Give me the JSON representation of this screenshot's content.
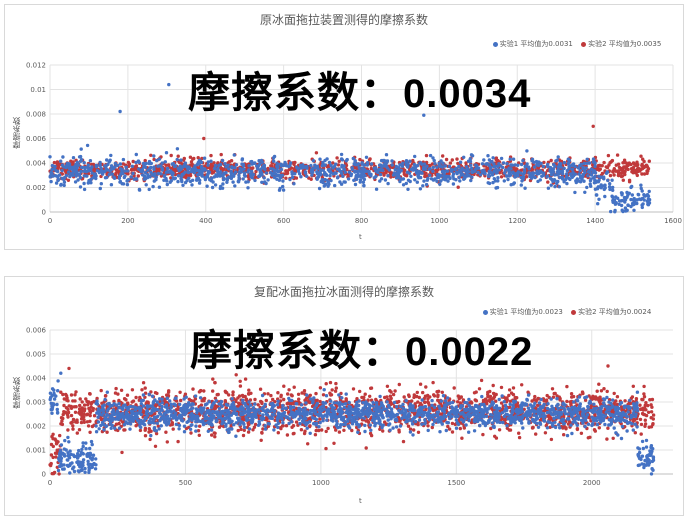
{
  "colors": {
    "series1": "#4472c4",
    "series2": "#c0393b",
    "grid": "#e3e3e3",
    "axis": "#bfbfbf",
    "text": "#595959"
  },
  "charts": [
    {
      "title": "原冰面拖拉装置测得的摩擦系数",
      "overlay_label": "摩擦系数：",
      "overlay_value": "0.0034",
      "ylabel": "摩擦系数",
      "xlabel": "t",
      "xticks": [
        "0",
        "200",
        "400",
        "600",
        "800",
        "1000",
        "1200",
        "1400",
        "1600"
      ],
      "yticks": [
        "0",
        "0.002",
        "0.004",
        "0.006",
        "0.008",
        "0.01",
        "0.012"
      ],
      "legend": [
        {
          "name": "实验1 平均值为0.0031"
        },
        {
          "name": "实验2 平均值为0.0035"
        }
      ]
    },
    {
      "title": "复配冰面拖拉冰面测得的摩擦系数",
      "overlay_label": "摩擦系数：",
      "overlay_value": "0.0022",
      "ylabel": "摩擦系数",
      "xlabel": "t",
      "xticks": [
        "0",
        "500",
        "1000",
        "1500",
        "2000"
      ],
      "yticks": [
        "0",
        "0.001",
        "0.002",
        "0.003",
        "0.004",
        "0.005",
        "0.006"
      ],
      "legend": [
        {
          "name": "实验1 平均值为0.0023"
        },
        {
          "name": "实验2 平均值为0.0024"
        }
      ]
    }
  ],
  "chart_data": [
    {
      "type": "scatter",
      "title": "原冰面拖拉装置测得的摩擦系数",
      "xlabel": "t",
      "ylabel": "摩擦系数",
      "xlim": [
        0,
        1600
      ],
      "ylim": [
        0,
        0.012
      ],
      "grid": true,
      "legend_position": "top-right",
      "series": [
        {
          "name": "实验1 平均值为0.0031",
          "x_range": [
            0,
            1540
          ],
          "typical_y": 0.0032,
          "y_spread": 0.0012,
          "segments": [
            {
              "x": [
                0,
                1400
              ],
              "mean": 0.0033
            },
            {
              "x": [
                1400,
                1440
              ],
              "mean": 0.0022
            },
            {
              "x": [
                1440,
                1540
              ],
              "mean": 0.001
            }
          ],
          "outliers": [
            {
              "x": 305,
              "y": 0.0104
            },
            {
              "x": 180,
              "y": 0.0082
            },
            {
              "x": 960,
              "y": 0.0079
            }
          ]
        },
        {
          "name": "实验2 平均值为0.0035",
          "x_range": [
            0,
            1540
          ],
          "typical_y": 0.0035,
          "y_spread": 0.0008,
          "segments": [
            {
              "x": [
                0,
                1540
              ],
              "mean": 0.0035
            }
          ],
          "outliers": [
            {
              "x": 1395,
              "y": 0.007
            },
            {
              "x": 395,
              "y": 0.006
            }
          ]
        }
      ]
    },
    {
      "type": "scatter",
      "title": "复配冰面拖拉冰面测得的摩擦系数",
      "xlabel": "t",
      "ylabel": "摩擦系数",
      "xlim": [
        0,
        2300
      ],
      "ylim": [
        0,
        0.006
      ],
      "grid": true,
      "legend_position": "top-right",
      "series": [
        {
          "name": "实验1 平均值为0.0023",
          "x_range": [
            0,
            2230
          ],
          "typical_y": 0.0024,
          "y_spread": 0.0006,
          "segments": [
            {
              "x": [
                0,
                30
              ],
              "mean": 0.0032
            },
            {
              "x": [
                30,
                170
              ],
              "mean": 0.0006
            },
            {
              "x": [
                170,
                2170
              ],
              "mean": 0.0025
            },
            {
              "x": [
                2170,
                2230
              ],
              "mean": 0.0006
            }
          ],
          "outliers": [
            {
              "x": 40,
              "y": 0.0042
            }
          ]
        },
        {
          "name": "实验2 平均值为0.0024",
          "x_range": [
            0,
            2230
          ],
          "typical_y": 0.0025,
          "y_spread": 0.0009,
          "segments": [
            {
              "x": [
                0,
                40
              ],
              "mean": 0.0008
            },
            {
              "x": [
                40,
                2230
              ],
              "mean": 0.0026
            }
          ],
          "outliers": [
            {
              "x": 2060,
              "y": 0.0045
            },
            {
              "x": 70,
              "y": 0.0044
            }
          ]
        }
      ]
    }
  ]
}
